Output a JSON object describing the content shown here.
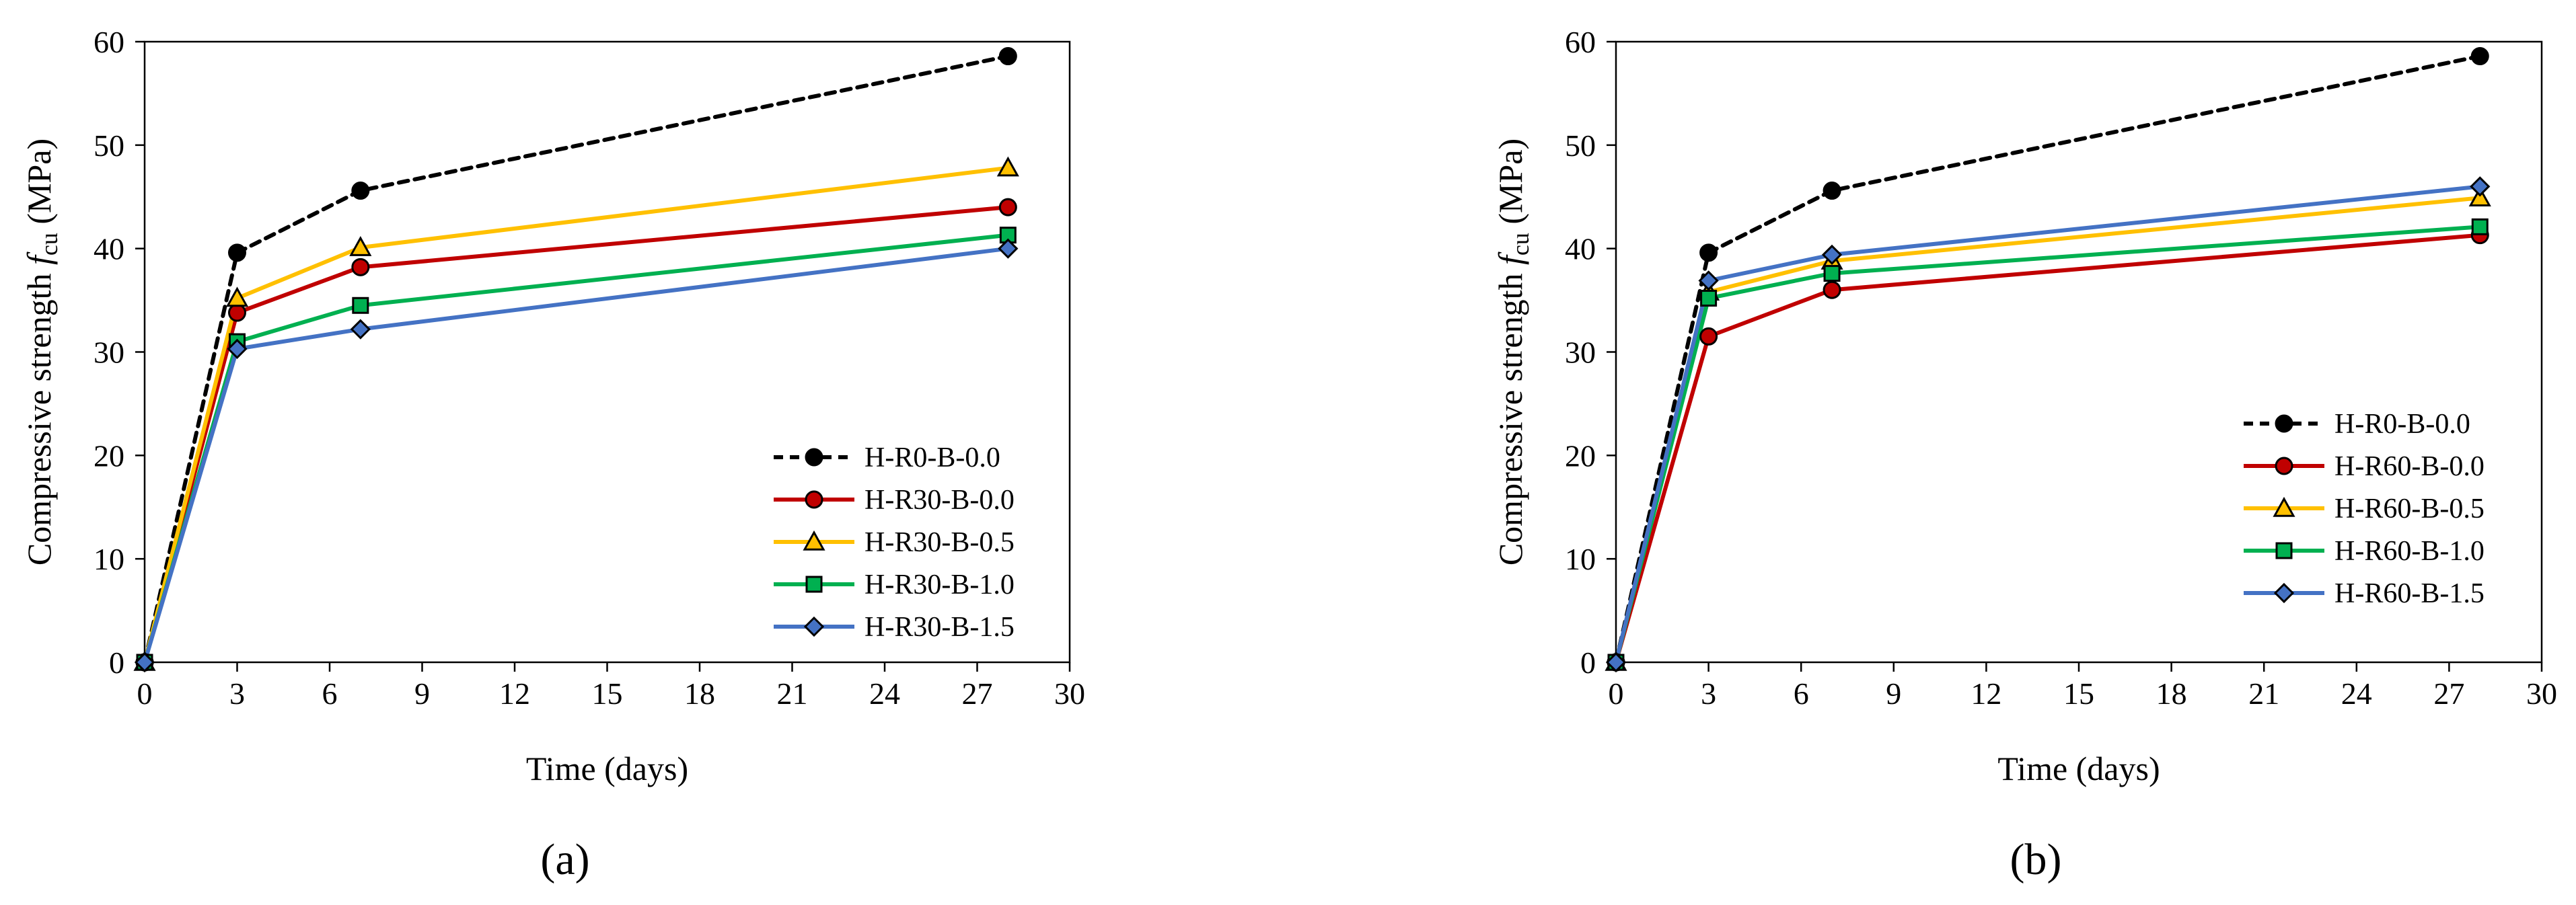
{
  "figure": {
    "panels": [
      "(a)",
      "(b)"
    ]
  },
  "chart_data": [
    {
      "type": "line",
      "panel_label": "a",
      "xlabel": "Time (days)",
      "ylabel_prefix": "Compressive strength ",
      "ylabel_var": "f",
      "ylabel_sub": "cu",
      "ylabel_unit": " (MPa)",
      "xlim": [
        0,
        30
      ],
      "ylim": [
        0,
        60
      ],
      "xticks": [
        0,
        3,
        6,
        9,
        12,
        15,
        18,
        21,
        24,
        27,
        30
      ],
      "xtick_labels": [
        "0",
        "3",
        "6",
        "9",
        "12",
        "15",
        "18",
        "21",
        "24",
        "27",
        "30"
      ],
      "yticks": [
        0,
        10,
        20,
        30,
        40,
        50,
        60
      ],
      "ytick_labels": [
        "0",
        "10",
        "20",
        "30",
        "40",
        "50",
        "60"
      ],
      "grid": false,
      "legend_position": "bottom-right",
      "x": [
        0,
        3,
        7,
        28
      ],
      "series": [
        {
          "name": "H-R0-B-0.0",
          "values": [
            0,
            39.6,
            45.6,
            58.6
          ],
          "color": "#000000",
          "marker": "circle",
          "dashed": true
        },
        {
          "name": "H-R30-B-0.0",
          "values": [
            0,
            33.8,
            38.2,
            44.0
          ],
          "color": "#C00000",
          "marker": "circle",
          "dashed": false
        },
        {
          "name": "H-R30-B-0.5",
          "values": [
            0,
            35.2,
            40.1,
            47.8
          ],
          "color": "#FFC000",
          "marker": "triangle",
          "dashed": false
        },
        {
          "name": "H-R30-B-1.0",
          "values": [
            0,
            31.0,
            34.5,
            41.3
          ],
          "color": "#00B050",
          "marker": "square",
          "dashed": false
        },
        {
          "name": "H-R30-B-1.5",
          "values": [
            0,
            30.3,
            32.2,
            40.0
          ],
          "color": "#4472C4",
          "marker": "diamond",
          "dashed": false
        }
      ]
    },
    {
      "type": "line",
      "panel_label": "b",
      "xlabel": "Time (days)",
      "ylabel_prefix": "Compressive strength ",
      "ylabel_var": "f",
      "ylabel_sub": "cu",
      "ylabel_unit": " (MPa)",
      "xlim": [
        0,
        30
      ],
      "ylim": [
        0,
        60
      ],
      "xticks": [
        0,
        3,
        6,
        9,
        12,
        15,
        18,
        21,
        24,
        27,
        30
      ],
      "xtick_labels": [
        "0",
        "3",
        "6",
        "9",
        "12",
        "15",
        "18",
        "21",
        "24",
        "27",
        "30"
      ],
      "yticks": [
        0,
        10,
        20,
        30,
        40,
        50,
        60
      ],
      "ytick_labels": [
        "0",
        "10",
        "20",
        "30",
        "40",
        "50",
        "60"
      ],
      "grid": false,
      "legend_position": "right",
      "x": [
        0,
        3,
        7,
        28
      ],
      "series": [
        {
          "name": "H-R0-B-0.0",
          "values": [
            0,
            39.6,
            45.6,
            58.6
          ],
          "color": "#000000",
          "marker": "circle",
          "dashed": true
        },
        {
          "name": "H-R60-B-0.0",
          "values": [
            0,
            31.5,
            36.0,
            41.3
          ],
          "color": "#C00000",
          "marker": "circle",
          "dashed": false
        },
        {
          "name": "H-R60-B-0.5",
          "values": [
            0,
            35.8,
            38.8,
            44.9
          ],
          "color": "#FFC000",
          "marker": "triangle",
          "dashed": false
        },
        {
          "name": "H-R60-B-1.0",
          "values": [
            0,
            35.2,
            37.6,
            42.1
          ],
          "color": "#00B050",
          "marker": "square",
          "dashed": false
        },
        {
          "name": "H-R60-B-1.5",
          "values": [
            0,
            36.9,
            39.4,
            46.0
          ],
          "color": "#4472C4",
          "marker": "diamond",
          "dashed": false
        }
      ]
    }
  ]
}
